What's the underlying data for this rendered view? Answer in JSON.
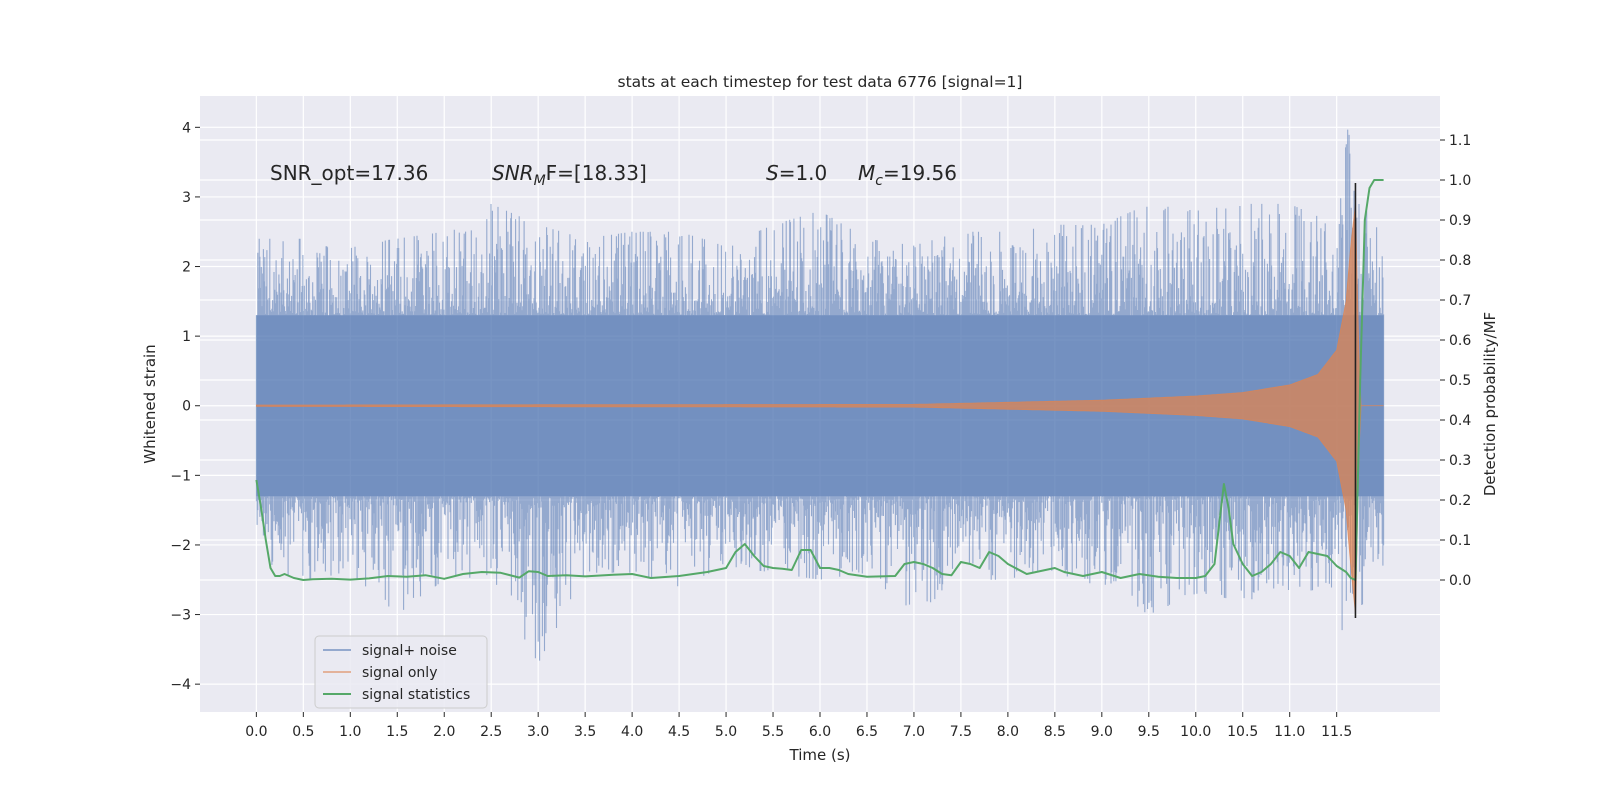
{
  "chart_data": {
    "type": "line",
    "title": "stats at each timestep for test data 6776 [signal=1]",
    "xlabel": "Time (s)",
    "ylabel": "Whitened strain",
    "y2label": "Detection probability/MF",
    "xlim": [
      -0.6,
      12.6
    ],
    "ylim": [
      -4.4,
      4.45
    ],
    "y2lim": [
      -0.33,
      1.21
    ],
    "x_ticks": [
      "0.0",
      "0.5",
      "1.0",
      "1.5",
      "2.0",
      "2.5",
      "3.0",
      "3.5",
      "4.0",
      "4.5",
      "5.0",
      "5.5",
      "6.0",
      "6.5",
      "7.0",
      "7.5",
      "8.0",
      "8.5",
      "9.0",
      "9.5",
      "10.0",
      "10.5",
      "11.0",
      "11.5"
    ],
    "y_ticks": [
      -4,
      -3,
      -2,
      -1,
      0,
      1,
      2,
      3,
      4
    ],
    "y2_ticks": [
      "0.0",
      "0.1",
      "0.2",
      "0.3",
      "0.4",
      "0.5",
      "0.6",
      "0.7",
      "0.8",
      "0.9",
      "1.0",
      "1.1"
    ],
    "grid": true,
    "legend_position": "lower-left",
    "annotations": [
      {
        "prefix": "SNR_opt=17.36",
        "sub": "",
        "suffix": "",
        "italic": false
      },
      {
        "prefix": "SNR",
        "sub": "M",
        "suffix": "F=[18.33]",
        "italic": true
      },
      {
        "prefix": "S",
        "sub": "",
        "suffix": "=1.0",
        "italic": true
      },
      {
        "prefix": "M",
        "sub": "c",
        "suffix": "=19.56",
        "italic": true
      }
    ],
    "series": [
      {
        "name": "signal+ noise",
        "color": "#4c72b0",
        "axis": "left",
        "x_range": [
          0.0,
          12.0
        ],
        "envelope": {
          "x": [
            0.0,
            0.5,
            1.0,
            1.5,
            2.0,
            2.5,
            3.0,
            3.5,
            4.0,
            4.5,
            5.0,
            5.5,
            6.0,
            6.5,
            7.0,
            7.5,
            8.0,
            8.5,
            9.0,
            9.5,
            10.0,
            10.5,
            11.0,
            11.5,
            11.62,
            11.68,
            12.0
          ],
          "upper": [
            2.4,
            2.4,
            2.3,
            2.4,
            2.5,
            2.9,
            2.6,
            2.4,
            2.5,
            2.5,
            2.3,
            2.6,
            2.8,
            2.4,
            2.3,
            2.5,
            2.5,
            2.6,
            2.6,
            2.9,
            2.8,
            2.9,
            2.9,
            2.6,
            4.1,
            3.1,
            2.4
          ],
          "lower": [
            -2.3,
            -2.5,
            -2.4,
            -3.0,
            -2.5,
            -2.5,
            -3.7,
            -2.4,
            -2.4,
            -2.6,
            -2.3,
            -2.4,
            -2.5,
            -2.4,
            -3.0,
            -2.5,
            -2.5,
            -2.4,
            -2.6,
            -3.0,
            -2.7,
            -2.8,
            -2.7,
            -2.6,
            -3.9,
            -3.0,
            -2.5
          ]
        }
      },
      {
        "name": "signal only",
        "color": "#dd8452",
        "axis": "left",
        "x_range": [
          0.0,
          12.0
        ],
        "envelope": {
          "x": [
            0.0,
            7.0,
            8.0,
            9.0,
            10.0,
            10.5,
            11.0,
            11.3,
            11.5,
            11.6,
            11.65,
            11.7,
            11.75,
            12.0
          ],
          "upper": [
            0.01,
            0.02,
            0.05,
            0.08,
            0.14,
            0.19,
            0.3,
            0.45,
            0.8,
            1.5,
            2.3,
            2.9,
            0.0,
            0.0
          ],
          "lower": [
            -0.01,
            -0.02,
            -0.05,
            -0.08,
            -0.14,
            -0.19,
            -0.3,
            -0.45,
            -0.8,
            -1.5,
            -2.3,
            -3.0,
            0.0,
            0.0
          ]
        }
      },
      {
        "name": "signal statistics",
        "color": "#55a868",
        "axis": "right",
        "x": [
          0.0,
          0.05,
          0.1,
          0.15,
          0.2,
          0.25,
          0.3,
          0.4,
          0.5,
          0.6,
          0.8,
          1.0,
          1.2,
          1.4,
          1.6,
          1.8,
          2.0,
          2.2,
          2.4,
          2.6,
          2.8,
          2.9,
          3.0,
          3.1,
          3.3,
          3.5,
          3.8,
          4.0,
          4.2,
          4.5,
          4.8,
          5.0,
          5.1,
          5.2,
          5.3,
          5.4,
          5.5,
          5.6,
          5.7,
          5.8,
          5.9,
          6.0,
          6.1,
          6.2,
          6.3,
          6.5,
          6.8,
          6.9,
          7.0,
          7.1,
          7.2,
          7.3,
          7.4,
          7.5,
          7.6,
          7.7,
          7.8,
          7.9,
          8.0,
          8.2,
          8.5,
          8.6,
          8.8,
          9.0,
          9.2,
          9.4,
          9.6,
          9.8,
          10.0,
          10.1,
          10.2,
          10.3,
          10.35,
          10.4,
          10.5,
          10.6,
          10.7,
          10.8,
          10.9,
          11.0,
          11.1,
          11.2,
          11.4,
          11.5,
          11.6,
          11.65,
          11.7,
          11.75,
          11.8,
          11.85,
          11.9,
          12.0
        ],
        "values": [
          0.25,
          0.18,
          0.1,
          0.03,
          0.01,
          0.01,
          0.015,
          0.005,
          0.0,
          0.002,
          0.003,
          0.001,
          0.004,
          0.01,
          0.008,
          0.012,
          0.003,
          0.015,
          0.02,
          0.018,
          0.006,
          0.022,
          0.02,
          0.01,
          0.012,
          0.009,
          0.013,
          0.015,
          0.005,
          0.01,
          0.02,
          0.03,
          0.07,
          0.09,
          0.06,
          0.035,
          0.03,
          0.028,
          0.025,
          0.075,
          0.075,
          0.03,
          0.03,
          0.025,
          0.015,
          0.008,
          0.01,
          0.04,
          0.045,
          0.04,
          0.03,
          0.015,
          0.012,
          0.045,
          0.04,
          0.03,
          0.07,
          0.06,
          0.04,
          0.015,
          0.03,
          0.02,
          0.01,
          0.02,
          0.005,
          0.015,
          0.008,
          0.005,
          0.005,
          0.01,
          0.04,
          0.24,
          0.18,
          0.09,
          0.04,
          0.01,
          0.02,
          0.04,
          0.07,
          0.06,
          0.03,
          0.07,
          0.06,
          0.035,
          0.02,
          0.005,
          0.0,
          0.5,
          0.9,
          0.98,
          1.0,
          1.0
        ]
      }
    ]
  }
}
